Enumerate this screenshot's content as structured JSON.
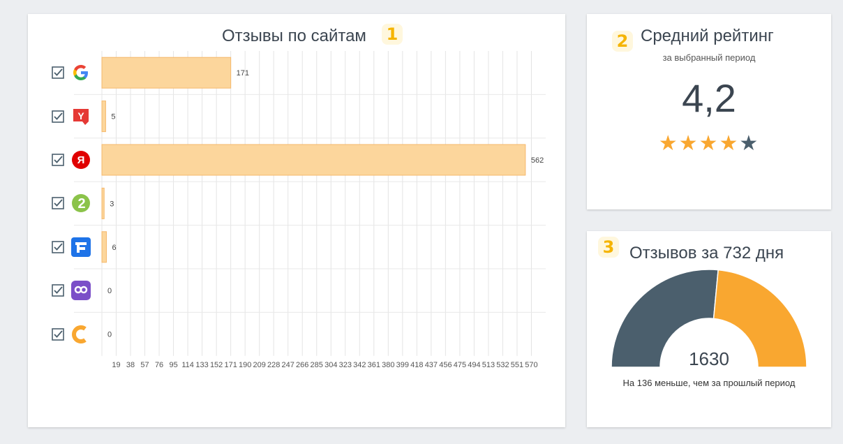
{
  "sites_card": {
    "title": "Отзывы по сайтам",
    "badge": "1",
    "rows": [
      {
        "icon": "google-logo-icon",
        "checked": true
      },
      {
        "icon": "yell-logo-icon",
        "checked": true
      },
      {
        "icon": "yandex-logo-icon",
        "checked": true
      },
      {
        "icon": "2gis-logo-icon",
        "checked": true
      },
      {
        "icon": "flamp-logo-icon",
        "checked": true
      },
      {
        "icon": "otzovik-logo-icon",
        "checked": true
      },
      {
        "icon": "zoon-logo-icon",
        "checked": true
      }
    ]
  },
  "chart_data": {
    "type": "bar",
    "orientation": "horizontal",
    "categories": [
      "Google",
      "Yell",
      "Яндекс",
      "2ГИС",
      "Flamp",
      "Отзовик",
      "Zoon"
    ],
    "values": [
      171,
      5,
      562,
      3,
      6,
      0,
      0
    ],
    "xlim": [
      0,
      589
    ],
    "x_ticks": [
      "19",
      "38",
      "57",
      "76",
      "95",
      "114",
      "133",
      "152",
      "171",
      "190",
      "209",
      "228",
      "247",
      "266",
      "285",
      "304",
      "323",
      "342",
      "361",
      "380",
      "399",
      "418",
      "437",
      "456",
      "475",
      "494",
      "513",
      "532",
      "551",
      "570"
    ],
    "grid": true,
    "bar_color": "#fcd69c",
    "bar_border": "#f5b86c"
  },
  "rating_card": {
    "badge": "2",
    "title": "Средний рейтинг",
    "subtitle": "за выбранный период",
    "value": "4,2",
    "rating": 4.2,
    "max_stars": 5,
    "star_filled_color": "#f9a730",
    "star_empty_color": "#4b5f6d"
  },
  "reviews_card": {
    "badge": "3",
    "title": "Отзывов за 732 дня",
    "total": "1630",
    "comparison": "На 136 меньше, чем за прошлый период",
    "gauge": {
      "segments": [
        {
          "value": 0.53,
          "color": "#4b5f6d"
        },
        {
          "value": 0.47,
          "color": "#f9a730"
        }
      ]
    }
  }
}
